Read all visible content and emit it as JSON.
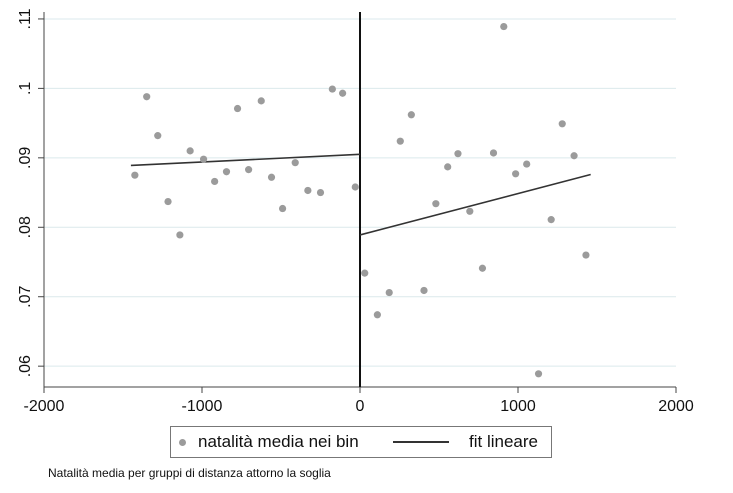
{
  "chart_data": {
    "type": "scatter",
    "xlim": [
      -2000,
      2000
    ],
    "ylim": [
      0.057,
      0.111
    ],
    "x_ticks": [
      -2000,
      -1000,
      0,
      1000,
      2000
    ],
    "x_tick_labels": [
      "-2000",
      "-1000",
      "0",
      "1000",
      "2000"
    ],
    "y_ticks": [
      0.06,
      0.07,
      0.08,
      0.09,
      0.1,
      0.11
    ],
    "y_tick_labels": [
      ".06",
      ".07",
      ".08",
      ".09",
      ".1",
      ".11"
    ],
    "grid": true,
    "cutoff": 0,
    "legend_position": "bottom",
    "series": [
      {
        "name": "natalità media nei bin",
        "kind": "points",
        "color": "#9b9b9b",
        "points": [
          [
            -1425,
            0.0875
          ],
          [
            -1350,
            0.0988
          ],
          [
            -1280,
            0.0932
          ],
          [
            -1215,
            0.0837
          ],
          [
            -1140,
            0.0789
          ],
          [
            -1075,
            0.091
          ],
          [
            -990,
            0.0898
          ],
          [
            -920,
            0.0866
          ],
          [
            -845,
            0.088
          ],
          [
            -775,
            0.0971
          ],
          [
            -705,
            0.0883
          ],
          [
            -625,
            0.0982
          ],
          [
            -560,
            0.0872
          ],
          [
            -490,
            0.0827
          ],
          [
            -410,
            0.0893
          ],
          [
            -330,
            0.0853
          ],
          [
            -250,
            0.085
          ],
          [
            -175,
            0.0999
          ],
          [
            -110,
            0.0993
          ],
          [
            -30,
            0.0858
          ],
          [
            30,
            0.0734
          ],
          [
            110,
            0.0674
          ],
          [
            185,
            0.0706
          ],
          [
            255,
            0.0924
          ],
          [
            325,
            0.0962
          ],
          [
            405,
            0.0709
          ],
          [
            480,
            0.0834
          ],
          [
            555,
            0.0887
          ],
          [
            620,
            0.0906
          ],
          [
            695,
            0.0823
          ],
          [
            775,
            0.0741
          ],
          [
            845,
            0.0907
          ],
          [
            910,
            0.1089
          ],
          [
            985,
            0.0877
          ],
          [
            1055,
            0.0891
          ],
          [
            1130,
            0.0589
          ],
          [
            1210,
            0.0811
          ],
          [
            1280,
            0.0949
          ],
          [
            1355,
            0.0903
          ],
          [
            1430,
            0.076
          ]
        ]
      },
      {
        "name": "fit lineare",
        "kind": "lines",
        "color": "#333333",
        "segments": [
          [
            [
              -1450,
              0.0889
            ],
            [
              0,
              0.0905
            ]
          ],
          [
            [
              0,
              0.0789
            ],
            [
              1460,
              0.0876
            ]
          ]
        ]
      }
    ]
  },
  "legend": {
    "points_label": "natalità media nei bin",
    "line_label": "fit lineare"
  },
  "caption": "Natalità media per gruppi di distanza attorno la soglia"
}
